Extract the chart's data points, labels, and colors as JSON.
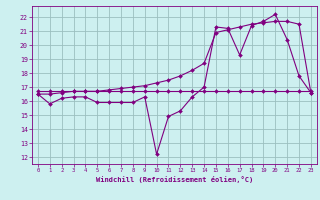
{
  "xlabel": "Windchill (Refroidissement éolien,°C)",
  "bg_color": "#cdf0f0",
  "line_color": "#800080",
  "grid_color": "#9bbfbf",
  "ylim": [
    11.5,
    22.8
  ],
  "xlim": [
    -0.5,
    23.5
  ],
  "yticks": [
    12,
    13,
    14,
    15,
    16,
    17,
    18,
    19,
    20,
    21,
    22
  ],
  "xticks": [
    0,
    1,
    2,
    3,
    4,
    5,
    6,
    7,
    8,
    9,
    10,
    11,
    12,
    13,
    14,
    15,
    16,
    17,
    18,
    19,
    20,
    21,
    22,
    23
  ],
  "series_jagged_x": [
    0,
    1,
    2,
    3,
    4,
    5,
    6,
    7,
    8,
    9,
    10,
    11,
    12,
    13,
    14,
    15,
    16,
    17,
    18,
    19,
    20,
    21,
    22,
    23
  ],
  "series_jagged_y": [
    16.5,
    15.8,
    16.2,
    16.3,
    16.3,
    15.9,
    15.9,
    15.9,
    15.9,
    16.3,
    12.2,
    14.9,
    15.3,
    16.3,
    17.0,
    21.3,
    21.2,
    19.3,
    21.4,
    21.7,
    22.2,
    20.4,
    17.8,
    16.6
  ],
  "series_flat_x": [
    0,
    1,
    2,
    3,
    4,
    5,
    6,
    7,
    8,
    9,
    10,
    11,
    12,
    13,
    14,
    15,
    16,
    17,
    18,
    19,
    20,
    21,
    22,
    23
  ],
  "series_flat_y": [
    16.7,
    16.7,
    16.7,
    16.7,
    16.7,
    16.7,
    16.7,
    16.7,
    16.7,
    16.7,
    16.7,
    16.7,
    16.7,
    16.7,
    16.7,
    16.7,
    16.7,
    16.7,
    16.7,
    16.7,
    16.7,
    16.7,
    16.7,
    16.7
  ],
  "series_diag_x": [
    0,
    1,
    2,
    3,
    4,
    5,
    6,
    7,
    8,
    9,
    10,
    11,
    12,
    13,
    14,
    15,
    16,
    17,
    18,
    19,
    20,
    21,
    22,
    23
  ],
  "series_diag_y": [
    16.5,
    16.5,
    16.6,
    16.7,
    16.7,
    16.7,
    16.8,
    16.9,
    17.0,
    17.1,
    17.3,
    17.5,
    17.8,
    18.2,
    18.7,
    20.9,
    21.1,
    21.3,
    21.5,
    21.6,
    21.7,
    21.7,
    21.5,
    16.6
  ]
}
